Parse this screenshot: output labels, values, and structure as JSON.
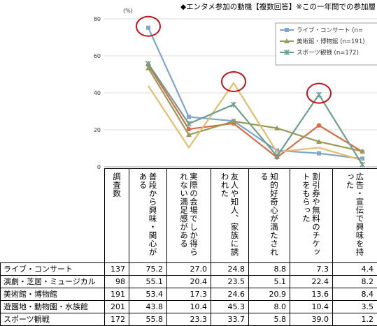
{
  "title": "◆エンタメ参加の動機【複数回答】※この一年間での参加層",
  "chart_data": {
    "type": "line",
    "y_unit": "(%)",
    "ylim": [
      0,
      80
    ],
    "yticks": [
      0,
      20,
      40,
      60,
      80
    ],
    "grid": true,
    "legend_position": "top-right",
    "categories": [
      "普段から興味・関心がある",
      "実際の会場でしか得られない満足感がある",
      "友人や知人、家族に誘われた",
      "知的好奇心が満たされる",
      "割引券や無料のチケットをもらった",
      "広告・宣伝で興味を持った"
    ],
    "series": [
      {
        "name": "ライブ・コンサート",
        "legend": "ライブ・コンサート (n=",
        "color": "#7fa6cf",
        "marker": "square",
        "values": [
          75.2,
          27.0,
          24.8,
          8.8,
          7.3,
          4.4
        ]
      },
      {
        "name": "演劇・芝居・ミュージカル",
        "color": "#d46e4a",
        "marker": "circle",
        "values": [
          55.1,
          20.4,
          23.5,
          5.1,
          22.4,
          8.2
        ]
      },
      {
        "name": "美術館・博物館",
        "legend": "美術館・博物館 (n=191)",
        "color": "#9a9a5a",
        "marker": "triangle",
        "values": [
          53.4,
          17.3,
          24.6,
          20.9,
          13.6,
          8.4
        ]
      },
      {
        "name": "遊園地・動物園・水族館",
        "color": "#e3bd6a",
        "marker": "none",
        "values": [
          43.8,
          10.4,
          45.3,
          8.0,
          10.4,
          3.5
        ]
      },
      {
        "name": "スポーツ観戦",
        "legend": "スポーツ観戦 (n=172)",
        "color": "#6e9e8e",
        "marker": "x",
        "values": [
          55.8,
          23.3,
          33.7,
          5.8,
          39.0,
          1.2
        ]
      }
    ],
    "highlights": [
      {
        "category_index": 0,
        "series_index": 0
      },
      {
        "category_index": 2,
        "series_index": 3
      },
      {
        "category_index": 4,
        "series_index": 4
      }
    ]
  },
  "table": {
    "n_header": "調査数",
    "rows": [
      {
        "label": "ライブ・コンサート",
        "n": "137",
        "values": [
          "75.2",
          "27.0",
          "24.8",
          "8.8",
          "7.3",
          "4.4"
        ]
      },
      {
        "label": "演劇・芝居・ミュージカル",
        "n": "98",
        "values": [
          "55.1",
          "20.4",
          "23.5",
          "5.1",
          "22.4",
          "8.2"
        ]
      },
      {
        "label": "美術館・博物館",
        "n": "191",
        "values": [
          "53.4",
          "17.3",
          "24.6",
          "20.9",
          "13.6",
          "8.4"
        ]
      },
      {
        "label": "遊園地・動物園・水族館",
        "n": "201",
        "values": [
          "43.8",
          "10.4",
          "45.3",
          "8.0",
          "10.4",
          "3.5"
        ]
      },
      {
        "label": "スポーツ観戦",
        "n": "172",
        "values": [
          "55.8",
          "23.3",
          "33.7",
          "5.8",
          "39.0",
          "1.2"
        ]
      }
    ]
  }
}
